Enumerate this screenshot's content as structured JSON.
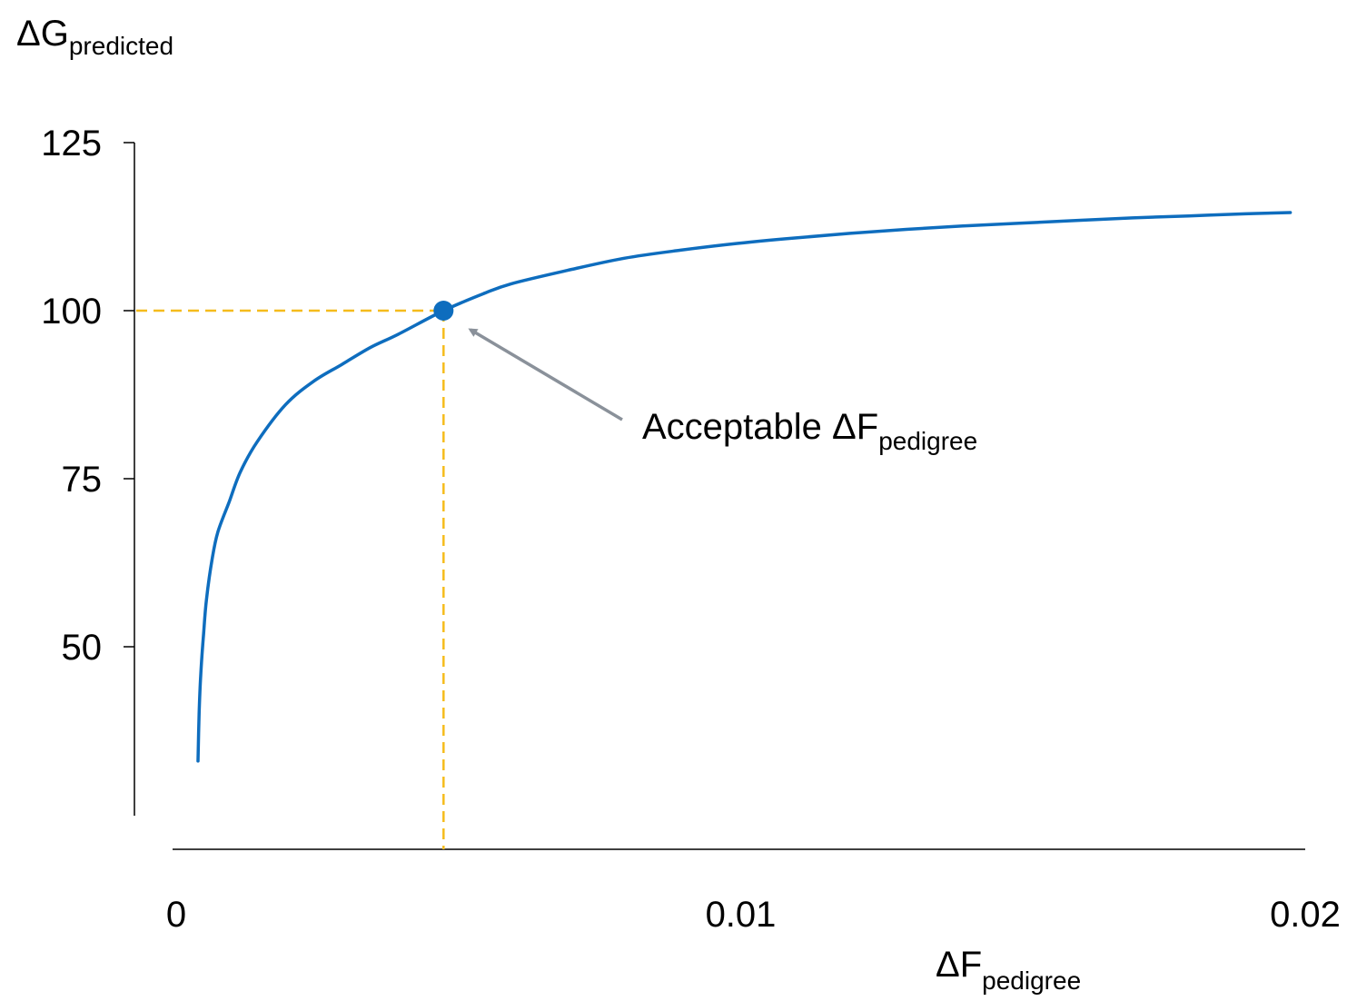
{
  "chart_data": {
    "type": "line",
    "ylabel": {
      "main": "ΔG",
      "sub": "predicted"
    },
    "xlabel": {
      "main": "ΔF",
      "sub": "pedigree"
    },
    "x_ticks": [
      {
        "value": 0,
        "label": "0"
      },
      {
        "value": 0.01,
        "label": "0.01"
      },
      {
        "value": 0.02,
        "label": "0.02"
      }
    ],
    "y_ticks": [
      {
        "value": 50,
        "label": "50"
      },
      {
        "value": 75,
        "label": "75"
      },
      {
        "value": 100,
        "label": "100"
      },
      {
        "value": 125,
        "label": "125"
      }
    ],
    "xlim": [
      0,
      0.02
    ],
    "ylim": [
      27,
      125
    ],
    "grid": false,
    "series": [
      {
        "x": [
          0.00045,
          0.00047,
          0.0005,
          0.00055,
          0.0006,
          0.0007,
          0.0008,
          0.001,
          0.0012,
          0.0015,
          0.002,
          0.0025,
          0.003,
          0.0035,
          0.004,
          0.0048,
          0.0055,
          0.006,
          0.007,
          0.008,
          0.009,
          0.01,
          0.011,
          0.012,
          0.013,
          0.014,
          0.015,
          0.016,
          0.017,
          0.018,
          0.019,
          0.0198
        ],
        "y": [
          33,
          40,
          46,
          52,
          57,
          63,
          67,
          71.5,
          76,
          80.5,
          86,
          89.5,
          92,
          94.5,
          96.5,
          100,
          102.5,
          104,
          106,
          107.8,
          109,
          110,
          110.8,
          111.5,
          112.1,
          112.6,
          113,
          113.4,
          113.8,
          114.1,
          114.4,
          114.6
        ],
        "color": "#0E6DBE"
      }
    ],
    "highlight_point": {
      "x": 0.0048,
      "y": 100,
      "color": "#0E6DBE"
    },
    "reference_line_color": "#F5BC1C",
    "annotation": {
      "main": "Acceptable ΔF",
      "sub": "pedigree",
      "arrow_color": "#8A919A"
    }
  }
}
